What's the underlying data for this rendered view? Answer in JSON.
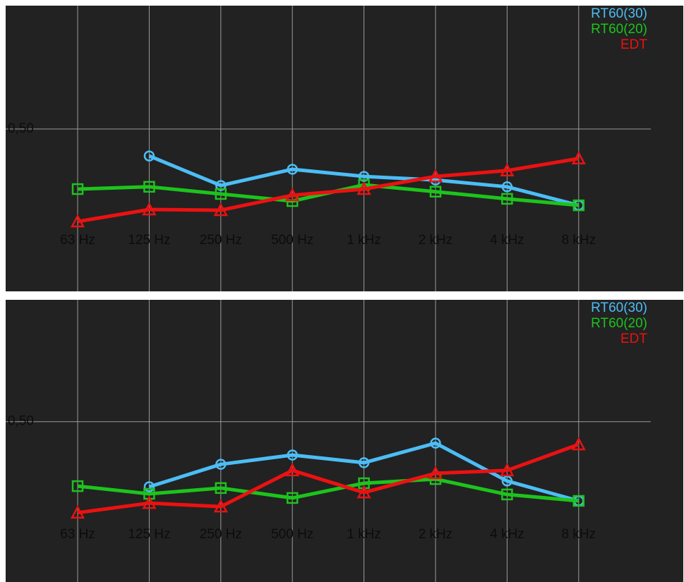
{
  "chart_data": [
    {
      "type": "line",
      "categories": [
        "63 Hz",
        "125 Hz",
        "250 Hz",
        "500 Hz",
        "1 kHz",
        "2 kHz",
        "4 kHz",
        "8 kHz"
      ],
      "series": [
        {
          "name": "RT60(30)",
          "color": "#4cbdf5",
          "marker": "circle",
          "values": [
            null,
            0.417,
            0.326,
            0.376,
            0.354,
            0.343,
            0.322,
            0.265
          ]
        },
        {
          "name": "RT60(20)",
          "color": "#1cc41c",
          "marker": "square",
          "values": [
            0.315,
            0.322,
            0.3,
            0.278,
            0.328,
            0.307,
            0.285,
            0.265
          ]
        },
        {
          "name": "EDT",
          "color": "#ec1111",
          "marker": "triangle",
          "values": [
            0.215,
            0.252,
            0.25,
            0.296,
            0.315,
            0.354,
            0.372,
            0.409
          ]
        }
      ],
      "ylim": [
        0,
        0.88
      ],
      "yticks": [
        {
          "value": 0.5,
          "label": "0,50"
        }
      ],
      "grid": true,
      "legend": "top-right"
    },
    {
      "type": "line",
      "categories": [
        "63 Hz",
        "125 Hz",
        "250 Hz",
        "500 Hz",
        "1 kHz",
        "2 kHz",
        "4 kHz",
        "8 kHz"
      ],
      "series": [
        {
          "name": "RT60(30)",
          "color": "#4cbdf5",
          "marker": "circle",
          "values": [
            null,
            0.297,
            0.367,
            0.396,
            0.372,
            0.433,
            0.315,
            0.253
          ]
        },
        {
          "name": "RT60(20)",
          "color": "#1cc41c",
          "marker": "square",
          "values": [
            0.299,
            0.275,
            0.293,
            0.262,
            0.308,
            0.321,
            0.273,
            0.253
          ]
        },
        {
          "name": "EDT",
          "color": "#ec1111",
          "marker": "triangle",
          "values": [
            0.216,
            0.246,
            0.235,
            0.348,
            0.279,
            0.339,
            0.348,
            0.429
          ]
        }
      ],
      "ylim": [
        0,
        0.88
      ],
      "yticks": [
        {
          "value": 0.5,
          "label": "0,50"
        }
      ],
      "grid": true,
      "legend": "top-right"
    }
  ]
}
